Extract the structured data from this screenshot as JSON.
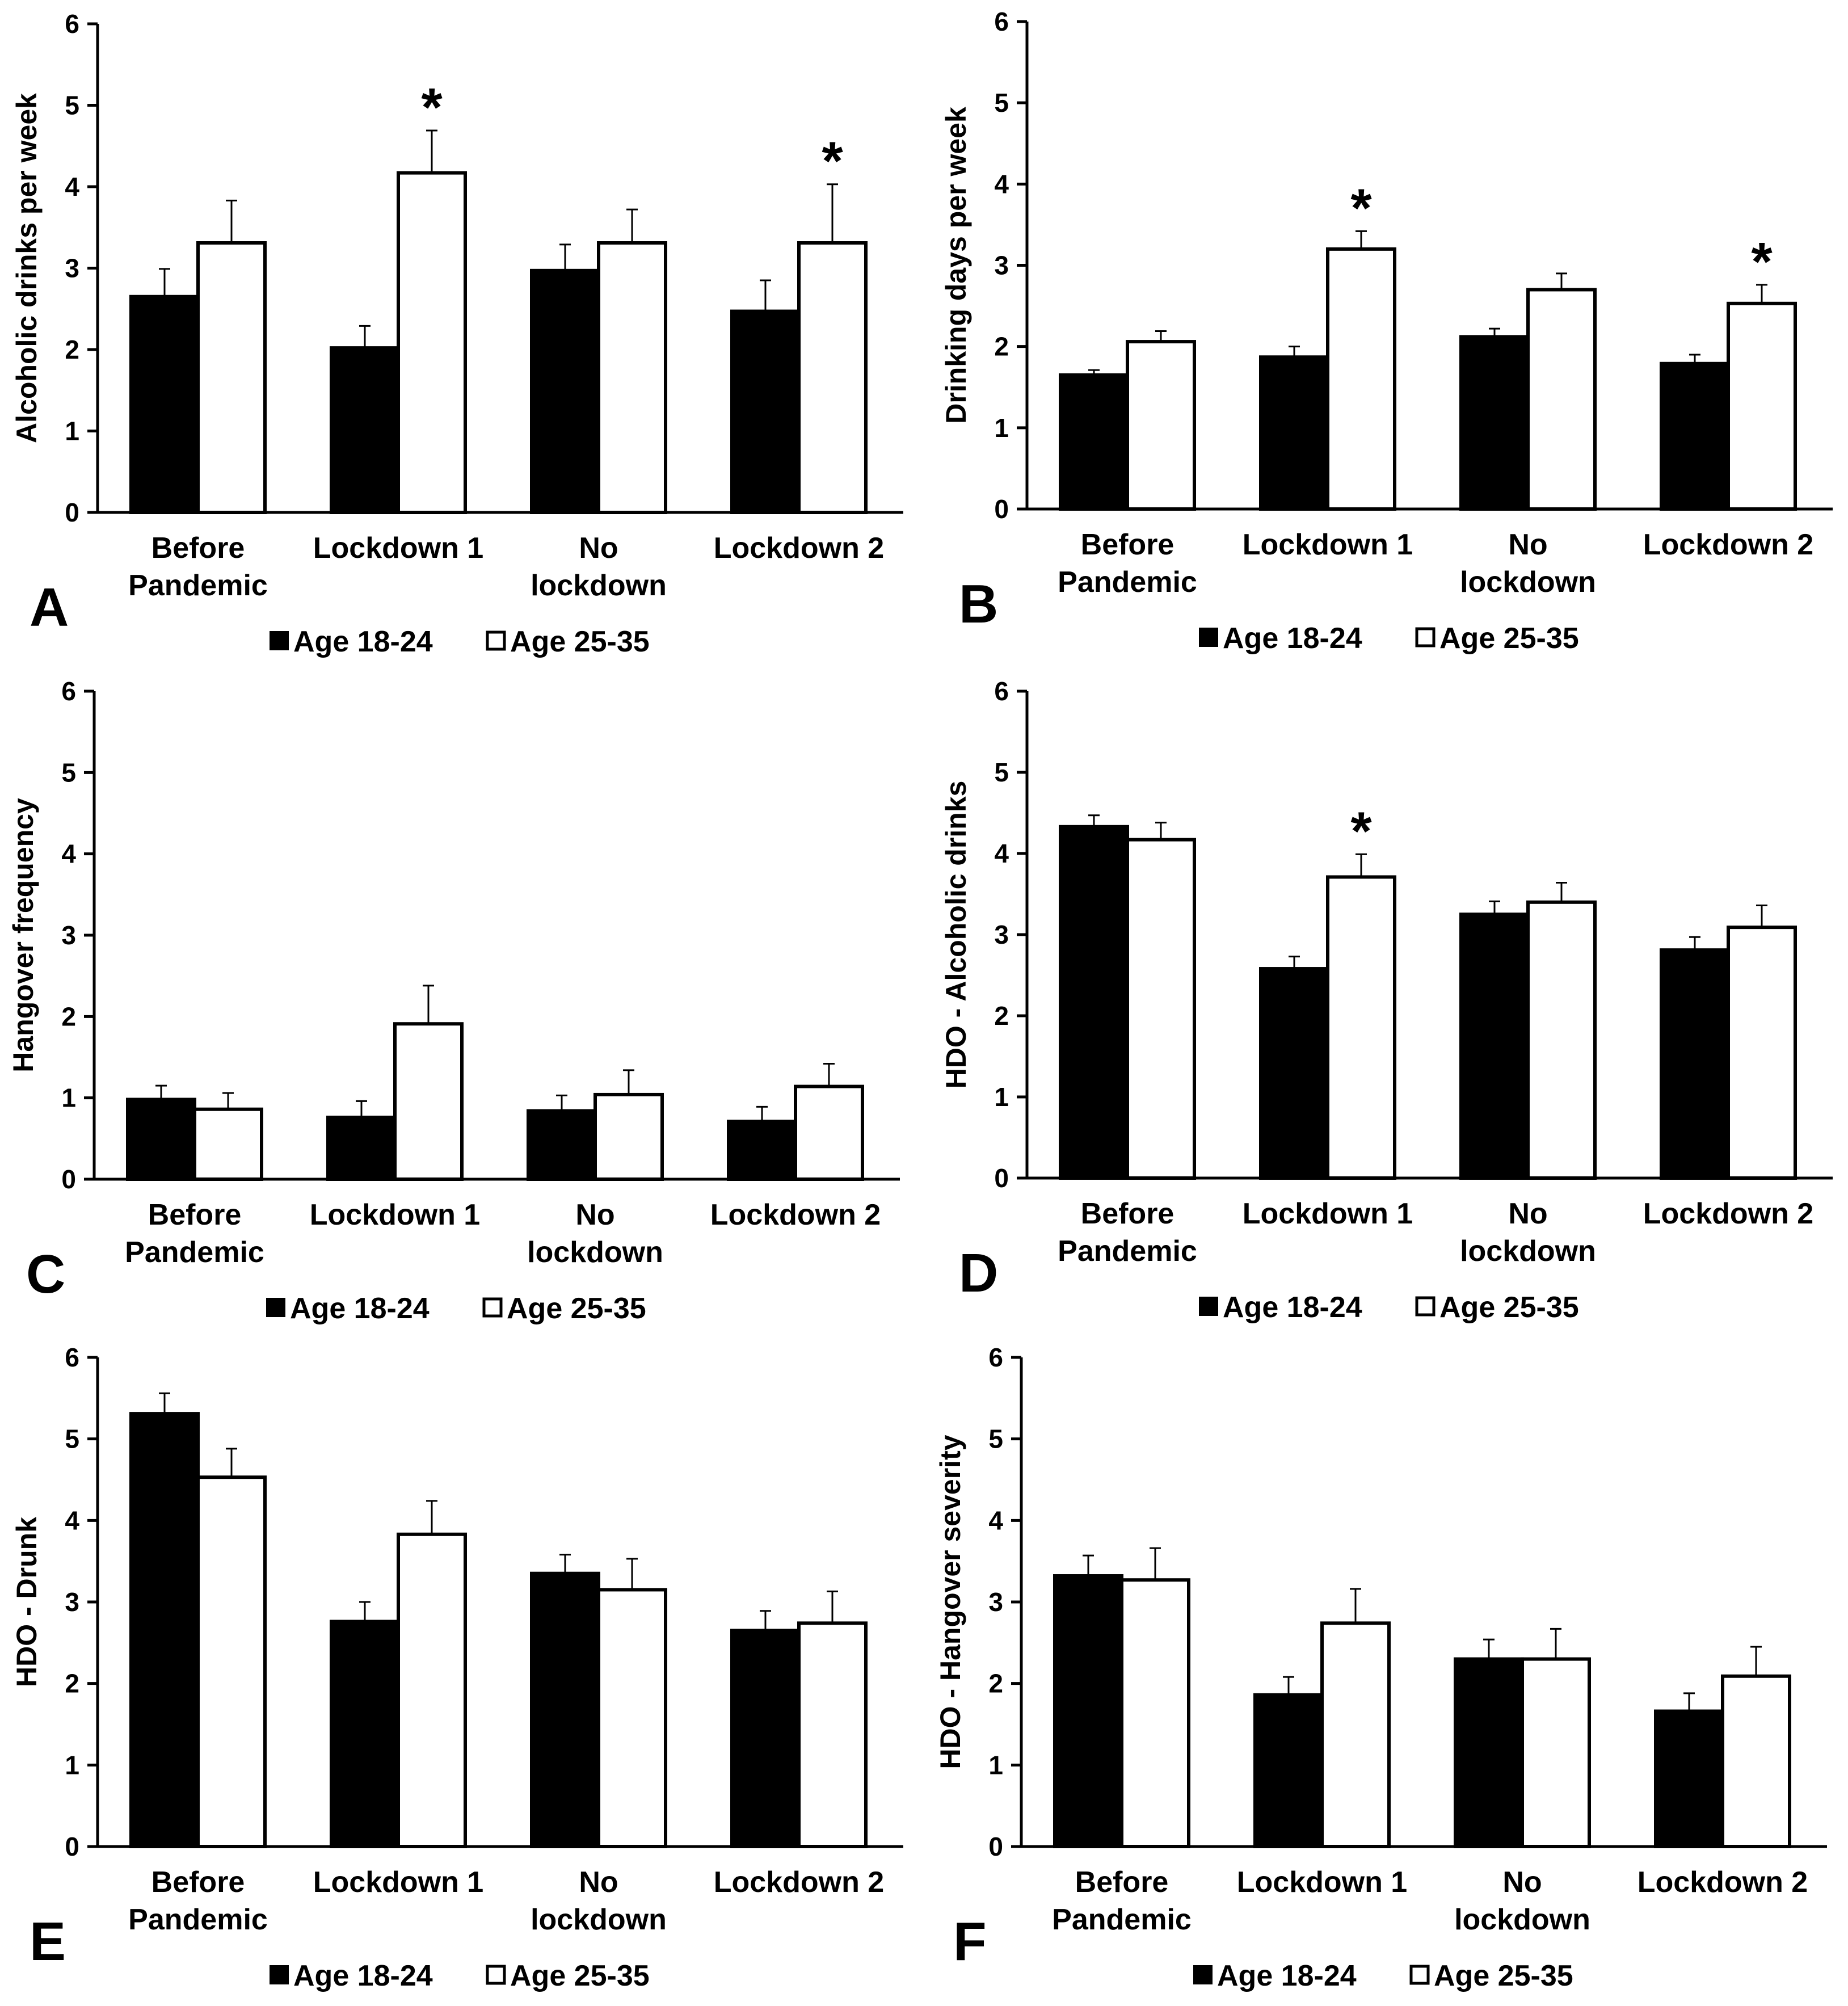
{
  "legend": {
    "labels": [
      "Age 18-24",
      "Age 25-35"
    ]
  },
  "chart_data": [
    {
      "type": "bar",
      "panel": "A",
      "categories": [
        [
          "Before",
          "Pandemic"
        ],
        [
          "Lockdown 1"
        ],
        [
          "No",
          "lockdown"
        ],
        [
          "Lockdown 2"
        ]
      ],
      "ylabel": "Alcoholic drinks per week",
      "ylim": [
        0,
        6
      ],
      "yticks": [
        0,
        1,
        2,
        3,
        4,
        5,
        6
      ],
      "series": [
        {
          "name": "Age 18-24",
          "values": [
            2.65,
            2.02,
            2.97,
            2.47
          ],
          "errors": [
            0.34,
            0.27,
            0.32,
            0.38
          ]
        },
        {
          "name": "Age 25-35",
          "values": [
            3.31,
            4.17,
            3.31,
            3.31
          ],
          "errors": [
            0.52,
            0.52,
            0.41,
            0.72
          ]
        }
      ],
      "annotations": [
        {
          "text": "*",
          "category": 1,
          "series": 1
        },
        {
          "text": "*",
          "category": 3,
          "series": 1
        }
      ],
      "legend_position": "bottom"
    },
    {
      "type": "bar",
      "panel": "B",
      "categories": [
        [
          "Before",
          "Pandemic"
        ],
        [
          "Lockdown 1"
        ],
        [
          "No",
          "lockdown"
        ],
        [
          "Lockdown 2"
        ]
      ],
      "ylabel": "Drinking days per week",
      "ylim": [
        0,
        6
      ],
      "yticks": [
        0,
        1,
        2,
        3,
        4,
        5,
        6
      ],
      "series": [
        {
          "name": "Age 18-24",
          "values": [
            1.65,
            1.87,
            2.12,
            1.79
          ],
          "errors": [
            0.06,
            0.13,
            0.1,
            0.11
          ]
        },
        {
          "name": "Age 25-35",
          "values": [
            2.06,
            3.2,
            2.7,
            2.53
          ],
          "errors": [
            0.13,
            0.22,
            0.2,
            0.23
          ]
        }
      ],
      "annotations": [
        {
          "text": "*",
          "category": 1,
          "series": 1
        },
        {
          "text": "*",
          "category": 3,
          "series": 1
        }
      ],
      "legend_position": "bottom"
    },
    {
      "type": "bar",
      "panel": "C",
      "categories": [
        [
          "Before",
          "Pandemic"
        ],
        [
          "Lockdown 1"
        ],
        [
          "No",
          "lockdown"
        ],
        [
          "Lockdown 2"
        ]
      ],
      "ylabel": "Hangover frequency",
      "ylim": [
        0,
        6
      ],
      "yticks": [
        0,
        1,
        2,
        3,
        4,
        5,
        6
      ],
      "series": [
        {
          "name": "Age 18-24",
          "values": [
            0.98,
            0.76,
            0.84,
            0.71
          ],
          "errors": [
            0.17,
            0.2,
            0.19,
            0.18
          ]
        },
        {
          "name": "Age 25-35",
          "values": [
            0.86,
            1.91,
            1.04,
            1.14
          ],
          "errors": [
            0.2,
            0.47,
            0.3,
            0.28
          ]
        }
      ],
      "annotations": [],
      "legend_position": "bottom"
    },
    {
      "type": "bar",
      "panel": "D",
      "categories": [
        [
          "Before",
          "Pandemic"
        ],
        [
          "Lockdown 1"
        ],
        [
          "No",
          "lockdown"
        ],
        [
          "Lockdown 2"
        ]
      ],
      "ylabel": "HDO - Alcoholic drinks",
      "ylim": [
        0,
        6
      ],
      "yticks": [
        0,
        1,
        2,
        3,
        4,
        5,
        6
      ],
      "series": [
        {
          "name": "Age 18-24",
          "values": [
            4.33,
            2.58,
            3.25,
            2.81
          ],
          "errors": [
            0.14,
            0.15,
            0.16,
            0.16
          ]
        },
        {
          "name": "Age 25-35",
          "values": [
            4.17,
            3.71,
            3.4,
            3.09
          ],
          "errors": [
            0.21,
            0.28,
            0.24,
            0.27
          ]
        }
      ],
      "annotations": [
        {
          "text": "*",
          "category": 1,
          "series": 1
        }
      ],
      "legend_position": "bottom"
    },
    {
      "type": "bar",
      "panel": "E",
      "categories": [
        [
          "Before",
          "Pandemic"
        ],
        [
          "Lockdown 1"
        ],
        [
          "No",
          "lockdown"
        ],
        [
          "Lockdown 2"
        ]
      ],
      "ylabel": "HDO - Drunk",
      "ylim": [
        0,
        6
      ],
      "yticks": [
        0,
        1,
        2,
        3,
        4,
        5,
        6
      ],
      "series": [
        {
          "name": "Age 18-24",
          "values": [
            5.31,
            2.76,
            3.35,
            2.65
          ],
          "errors": [
            0.25,
            0.24,
            0.23,
            0.24
          ]
        },
        {
          "name": "Age 25-35",
          "values": [
            4.53,
            3.83,
            3.15,
            2.74
          ],
          "errors": [
            0.35,
            0.41,
            0.38,
            0.39
          ]
        }
      ],
      "annotations": [],
      "legend_position": "bottom"
    },
    {
      "type": "bar",
      "panel": "F",
      "categories": [
        [
          "Before",
          "Pandemic"
        ],
        [
          "Lockdown 1"
        ],
        [
          "No",
          "lockdown"
        ],
        [
          "Lockdown 2"
        ]
      ],
      "ylabel": "HDO - Hangover severity",
      "ylim": [
        0,
        6
      ],
      "yticks": [
        0,
        1,
        2,
        3,
        4,
        5,
        6
      ],
      "series": [
        {
          "name": "Age 18-24",
          "values": [
            3.32,
            1.86,
            2.3,
            1.66
          ],
          "errors": [
            0.25,
            0.22,
            0.24,
            0.22
          ]
        },
        {
          "name": "Age 25-35",
          "values": [
            3.27,
            2.74,
            2.3,
            2.09
          ],
          "errors": [
            0.39,
            0.42,
            0.37,
            0.36
          ]
        }
      ],
      "annotations": [],
      "legend_position": "bottom"
    }
  ]
}
